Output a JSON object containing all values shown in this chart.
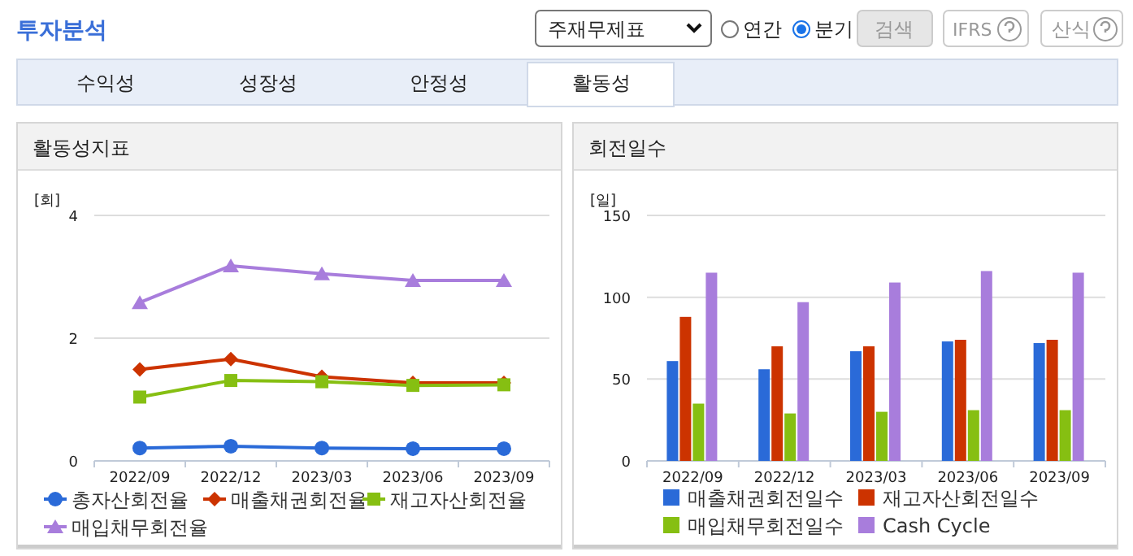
{
  "chart_data": [
    {
      "type": "other",
      "title": "투자분석",
      "annotations": [
        "주재무제표",
        "연간",
        "분기",
        "검색",
        "IFRS",
        "산식",
        "수익성",
        "성장성",
        "안정성",
        "활동성"
      ]
    },
    {
      "type": "line",
      "title": "활동성지표",
      "ylabel": "[회]",
      "categories": [
        "2022/09",
        "2022/12",
        "2023/03",
        "2023/06",
        "2023/09"
      ],
      "ylim": [
        0,
        4
      ],
      "yticks": [
        0,
        2,
        4
      ],
      "grid": "y",
      "legend": "bottom",
      "series": [
        {
          "name": "총자산회전율",
          "color": "#2a6ad8",
          "marker": "circle",
          "values": [
            0.21,
            0.24,
            0.21,
            0.2,
            0.2
          ]
        },
        {
          "name": "매출채권회전율",
          "color": "#cc3300",
          "marker": "diamond",
          "values": [
            1.49,
            1.66,
            1.37,
            1.27,
            1.27
          ]
        },
        {
          "name": "재고자산회전율",
          "color": "#86bf12",
          "marker": "square",
          "values": [
            1.04,
            1.31,
            1.29,
            1.23,
            1.24
          ]
        },
        {
          "name": "매입채무회전율",
          "color": "#a87ddc",
          "marker": "triangle",
          "values": [
            2.58,
            3.18,
            3.05,
            2.94,
            2.94
          ]
        }
      ]
    },
    {
      "type": "bar",
      "title": "회전일수",
      "ylabel": "[일]",
      "categories": [
        "2022/09",
        "2022/12",
        "2023/03",
        "2023/06",
        "2023/09"
      ],
      "ylim": [
        0,
        150
      ],
      "yticks": [
        0,
        50,
        100,
        150
      ],
      "grid": "y",
      "legend": "bottom",
      "series": [
        {
          "name": "매출채권회전일수",
          "color": "#2a6ad8",
          "values": [
            61,
            56,
            67,
            73,
            72
          ]
        },
        {
          "name": "재고자산회전일수",
          "color": "#cc3300",
          "values": [
            88,
            70,
            70,
            74,
            74
          ]
        },
        {
          "name": "매입채무회전일수",
          "color": "#86bf12",
          "values": [
            35,
            29,
            30,
            31,
            31
          ]
        },
        {
          "name": "Cash Cycle",
          "color": "#a87ddc",
          "values": [
            115,
            97,
            109,
            116,
            115
          ]
        }
      ]
    }
  ]
}
